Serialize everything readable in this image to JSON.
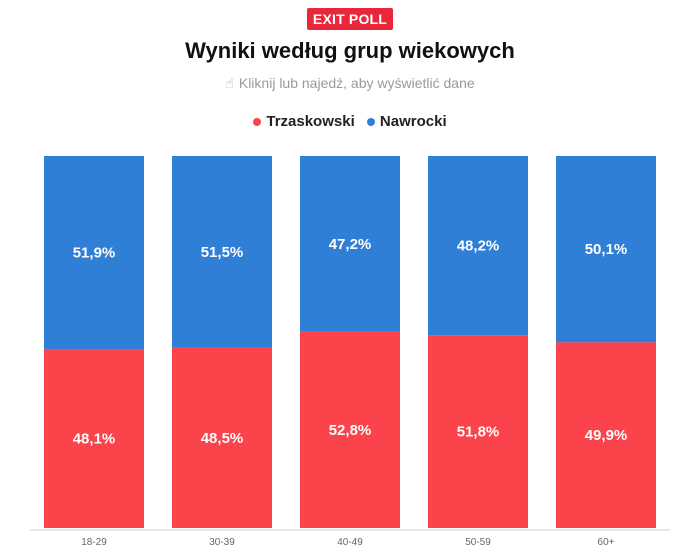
{
  "badge": "EXIT POLL",
  "title": "Wyniki według grup wiekowych",
  "hint": "Kliknij lub najedź, aby wyświetlić dane",
  "hint_icon": "pointing-hand-icon",
  "colors": {
    "trzaskowski": "#fa434b",
    "nawrocki": "#2f7fd6",
    "badge": "#e8273b"
  },
  "chart_data": {
    "type": "bar",
    "stacked": true,
    "normalized": true,
    "categories": [
      "18-29",
      "30-39",
      "40-49",
      "50-59",
      "60+"
    ],
    "series": [
      {
        "name": "Trzaskowski",
        "values": [
          48.1,
          48.5,
          52.8,
          51.8,
          49.9
        ],
        "labels": [
          "48,1%",
          "48,5%",
          "52,8%",
          "51,8%",
          "49,9%"
        ]
      },
      {
        "name": "Nawrocki",
        "values": [
          51.9,
          51.5,
          47.2,
          48.2,
          50.1
        ],
        "labels": [
          "51,9%",
          "51,5%",
          "47,2%",
          "48,2%",
          "50,1%"
        ]
      }
    ],
    "title": "Wyniki według grup wiekowych",
    "legend_position": "top-center",
    "ylim": [
      0,
      100
    ],
    "grid": false
  }
}
